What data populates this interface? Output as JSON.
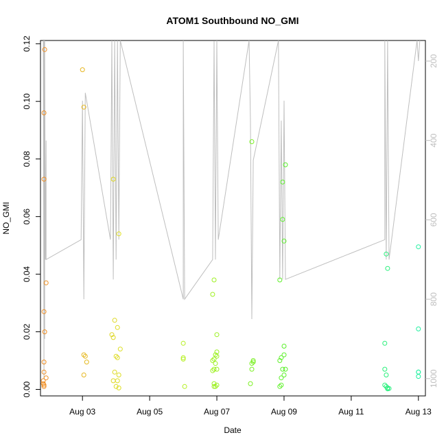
{
  "chart_data": {
    "type": "scatter",
    "title": "ATOM1 Southbound NO_GMI",
    "xlabel": "Date",
    "ylabel": "NO_GMI",
    "grid": false,
    "x_ticks": [
      "Aug 03",
      "Aug 05",
      "Aug 07",
      "Aug 09",
      "Aug 11",
      "Aug 13"
    ],
    "y_ticks": [
      "0.00",
      "0.02",
      "0.04",
      "0.06",
      "0.08",
      "0.10",
      "0.12"
    ],
    "y2_ticks": [
      "200",
      "400",
      "600",
      "800",
      "1000"
    ],
    "ylim": [
      0,
      0.12
    ],
    "y2_reversed": true,
    "colors": {
      "axis": "#000000",
      "secondary_axis": "#bebebe",
      "altitude_trace": "#bebebe",
      "point_gradient": [
        "#f08c20",
        "#d8f020",
        "#90f020",
        "#30f030",
        "#20f0a0"
      ]
    },
    "series": [
      {
        "points": [
          [
            "Aug 01 21:00",
            0.118
          ],
          [
            "Aug 01 20:30",
            0.096
          ],
          [
            "Aug 01 20:30",
            0.073
          ],
          [
            "Aug 01 22:00",
            0.037
          ],
          [
            "Aug 01 20:30",
            0.027
          ],
          [
            "Aug 01 21:00",
            0.02
          ],
          [
            "Aug 01 20:30",
            0.0095
          ],
          [
            "Aug 01 20:30",
            0.006
          ],
          [
            "Aug 01 22:00",
            0.004
          ],
          [
            "Aug 01 20:00",
            0.003
          ],
          [
            "Aug 01 20:00",
            0.002
          ],
          [
            "Aug 01 20:30",
            0.0015
          ],
          [
            "Aug 01 20:30",
            0.001
          ],
          [
            "Aug 03 00:00",
            0.111
          ],
          [
            "Aug 03 01:00",
            0.098
          ],
          [
            "Aug 03 01:00",
            0.012
          ],
          [
            "Aug 03 02:00",
            0.0115
          ],
          [
            "Aug 03 03:00",
            0.0095
          ],
          [
            "Aug 03 01:00",
            0.005
          ],
          [
            "Aug 03 22:00",
            0.073
          ],
          [
            "Aug 04 02:00",
            0.054
          ],
          [
            "Aug 03 23:00",
            0.024
          ],
          [
            "Aug 04 01:00",
            0.0215
          ],
          [
            "Aug 03 21:00",
            0.019
          ],
          [
            "Aug 03 22:00",
            0.018
          ],
          [
            "Aug 04 03:00",
            0.014
          ],
          [
            "Aug 04 01:00",
            0.011
          ],
          [
            "Aug 04 00:00",
            0.0115
          ],
          [
            "Aug 03 23:00",
            0.006
          ],
          [
            "Aug 04 02:00",
            0.005
          ],
          [
            "Aug 03 22:00",
            0.003
          ],
          [
            "Aug 04 01:00",
            0.003
          ],
          [
            "Aug 04 00:00",
            0.001
          ],
          [
            "Aug 04 02:00",
            0.0005
          ],
          [
            "Aug 06 00:00",
            0.016
          ],
          [
            "Aug 06 00:00",
            0.0105
          ],
          [
            "Aug 06 00:00",
            0.011
          ],
          [
            "Aug 06 01:00",
            0.001
          ],
          [
            "Aug 06 21:00",
            0.033
          ],
          [
            "Aug 06 22:00",
            0.038
          ],
          [
            "Aug 07 00:00",
            0.019
          ],
          [
            "Aug 07 00:00",
            0.013
          ],
          [
            "Aug 06 23:00",
            0.012
          ],
          [
            "Aug 07 00:00",
            0.0115
          ],
          [
            "Aug 06 22:00",
            0.0105
          ],
          [
            "Aug 06 21:00",
            0.01
          ],
          [
            "Aug 06 23:00",
            0.009
          ],
          [
            "Aug 07 00:00",
            0.007
          ],
          [
            "Aug 06 22:00",
            0.007
          ],
          [
            "Aug 06 21:00",
            0.0065
          ],
          [
            "Aug 06 22:00",
            0.002
          ],
          [
            "Aug 07 00:00",
            0.0015
          ],
          [
            "Aug 06 23:00",
            0.001
          ],
          [
            "Aug 06 22:00",
            0.001
          ],
          [
            "Aug 08 01:00",
            0.086
          ],
          [
            "Aug 08 02:00",
            0.01
          ],
          [
            "Aug 08 01:00",
            0.009
          ],
          [
            "Aug 08 02:00",
            0.0095
          ],
          [
            "Aug 08 01:00",
            0.007
          ],
          [
            "Aug 08 00:00",
            0.002
          ],
          [
            "Aug 08 21:00",
            0.038
          ],
          [
            "Aug 09 01:00",
            0.078
          ],
          [
            "Aug 08 23:00",
            0.072
          ],
          [
            "Aug 08 23:00",
            0.059
          ],
          [
            "Aug 09 00:00",
            0.0515
          ],
          [
            "Aug 09 00:00",
            0.015
          ],
          [
            "Aug 09 00:00",
            0.012
          ],
          [
            "Aug 08 22:00",
            0.011
          ],
          [
            "Aug 08 21:00",
            0.01
          ],
          [
            "Aug 09 01:00",
            0.007
          ],
          [
            "Aug 08 23:00",
            0.007
          ],
          [
            "Aug 09 00:00",
            0.005
          ],
          [
            "Aug 08 22:00",
            0.004
          ],
          [
            "Aug 08 22:00",
            0.0015
          ],
          [
            "Aug 08 21:00",
            0.001
          ],
          [
            "Aug 12 01:00",
            0.047
          ],
          [
            "Aug 12 02:00",
            0.042
          ],
          [
            "Aug 12 00:00",
            0.016
          ],
          [
            "Aug 12 00:00",
            0.007
          ],
          [
            "Aug 12 01:00",
            0.005
          ],
          [
            "Aug 12 00:00",
            0.0015
          ],
          [
            "Aug 12 01:00",
            0.001
          ],
          [
            "Aug 12 02:00",
            0.0005
          ],
          [
            "Aug 12 03:00",
            0.0003
          ],
          [
            "Aug 12 02:00",
            0.0002
          ],
          [
            "Aug 13 00:00",
            0.0495
          ],
          [
            "Aug 13 00:00",
            0.021
          ],
          [
            "Aug 13 00:00",
            0.006
          ],
          [
            "Aug 13 00:00",
            0.006
          ],
          [
            "Aug 13 00:00",
            0.0045
          ]
        ]
      },
      {
        "type": "line",
        "axis": "y2",
        "points": [
          [
            "Aug 01 20:00",
            100
          ],
          [
            "Aug 01 20:30",
            1000
          ],
          [
            "Aug 01 20:30",
            100
          ],
          [
            "Aug 01 21:00",
            900
          ],
          [
            "Aug 01 21:00",
            100
          ],
          [
            "Aug 01 21:30",
            700
          ],
          [
            "Aug 01 22:00",
            400
          ],
          [
            "Aug 01 22:00",
            700
          ],
          [
            "Aug 02 23:00",
            650
          ],
          [
            "Aug 03 00:00",
            300
          ],
          [
            "Aug 03 01:00",
            800
          ],
          [
            "Aug 03 02:00",
            280
          ],
          [
            "Aug 03 20:00",
            650
          ],
          [
            "Aug 03 21:00",
            100
          ],
          [
            "Aug 03 22:00",
            750
          ],
          [
            "Aug 03 23:00",
            100
          ],
          [
            "Aug 04 00:00",
            700
          ],
          [
            "Aug 04 01:00",
            100
          ],
          [
            "Aug 04 02:00",
            650
          ],
          [
            "Aug 04 03:00",
            100
          ],
          [
            "Aug 06 00:00",
            800
          ],
          [
            "Aug 06 00:00",
            100
          ],
          [
            "Aug 06 01:00",
            800
          ],
          [
            "Aug 06 21:00",
            700
          ],
          [
            "Aug 06 22:00",
            150
          ],
          [
            "Aug 06 23:00",
            700
          ],
          [
            "Aug 07 00:00",
            100
          ],
          [
            "Aug 07 01:00",
            650
          ],
          [
            "Aug 07 23:00",
            100
          ],
          [
            "Aug 08 00:00",
            350
          ],
          [
            "Aug 08 01:00",
            850
          ],
          [
            "Aug 08 02:00",
            450
          ],
          [
            "Aug 08 20:00",
            100
          ],
          [
            "Aug 08 21:00",
            750
          ],
          [
            "Aug 08 22:00",
            350
          ],
          [
            "Aug 08 23:00",
            750
          ],
          [
            "Aug 09 00:00",
            300
          ],
          [
            "Aug 09 01:00",
            750
          ],
          [
            "Aug 12 00:00",
            650
          ],
          [
            "Aug 12 00:00",
            100
          ],
          [
            "Aug 12 01:00",
            700
          ],
          [
            "Aug 12 02:00",
            100
          ],
          [
            "Aug 12 03:00",
            700
          ],
          [
            "Aug 12 23:00",
            100
          ],
          [
            "Aug 13 00:00",
            200
          ],
          [
            "Aug 13 01:00",
            100
          ]
        ]
      }
    ]
  }
}
